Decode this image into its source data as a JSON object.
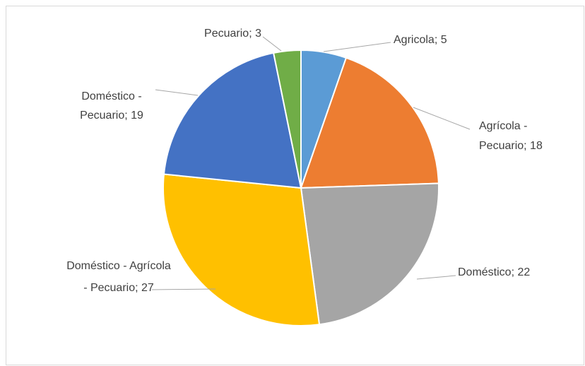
{
  "chart_data": {
    "type": "pie",
    "categories": [
      "Agricola",
      "Agrícola - Pecuario",
      "Doméstico",
      "Doméstico - Agrícola - Pecuario",
      "Doméstico - Pecuario",
      "Pecuario"
    ],
    "values": [
      5,
      18,
      22,
      27,
      19,
      3
    ],
    "colors": [
      "#5b9bd5",
      "#ed7d31",
      "#a5a5a5",
      "#ffc000",
      "#4472c4",
      "#70ad47"
    ],
    "label_separator": "; "
  }
}
